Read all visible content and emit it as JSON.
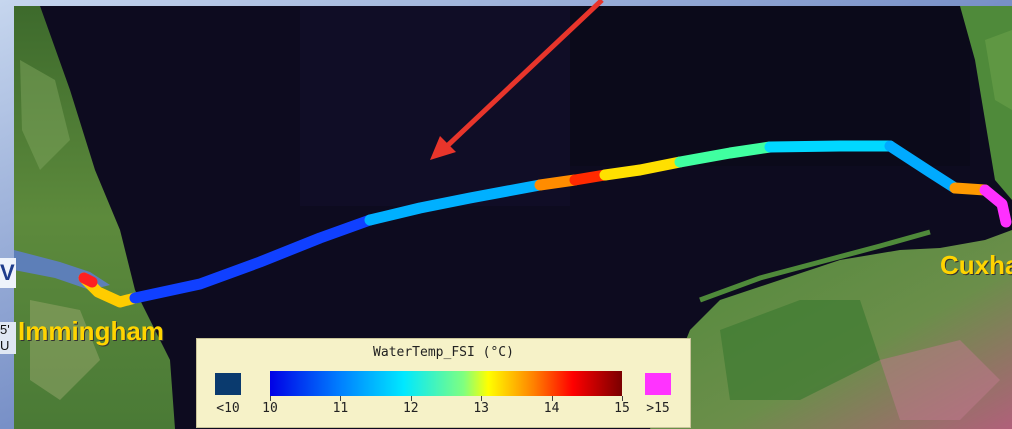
{
  "ports": {
    "left": "Immingham",
    "right": "Cuxha"
  },
  "legend": {
    "title": "WaterTemp_FSI (°C)",
    "below_label": "<10",
    "above_label": ">15",
    "ticks": [
      "10",
      "11",
      "12",
      "13",
      "14",
      "15"
    ],
    "below_color": "#0a3a6e",
    "above_color": "#ff33ff"
  },
  "side_fragments": {
    "top": "V",
    "mid": "5'",
    "low": "U"
  },
  "colors": {
    "arrow": "#e8352b",
    "label": "#ffd400",
    "sea": "#0d0b1f"
  }
}
